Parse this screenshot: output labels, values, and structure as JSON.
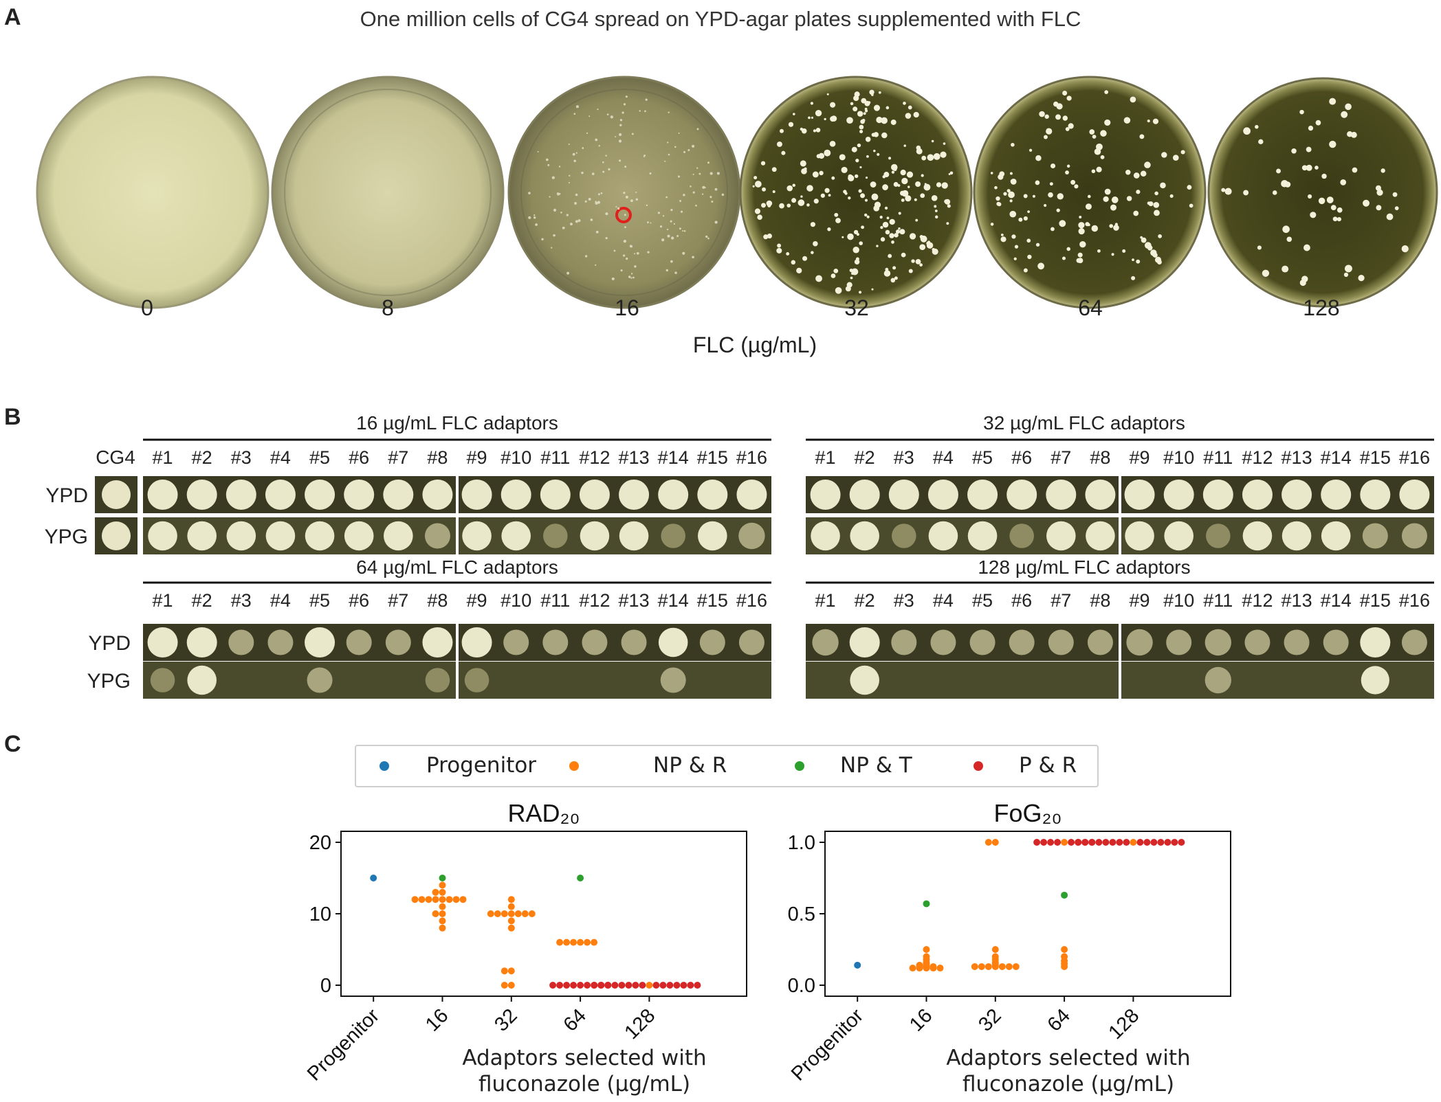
{
  "panel_a": {
    "letter": "A",
    "title": "One million cells of CG4 spread on YPD-agar plates supplemented with FLC",
    "doses": [
      "0",
      "8",
      "16",
      "32",
      "64",
      "128"
    ],
    "xlabel": "FLC (µg/mL)"
  },
  "panel_b": {
    "letter": "B",
    "groups": [
      {
        "title": "16 µg/mL FLC adaptors"
      },
      {
        "title": "32 µg/mL FLC adaptors"
      },
      {
        "title": "64 µg/mL FLC adaptors"
      },
      {
        "title": "128 µg/mL FLC adaptors"
      }
    ],
    "control_label": "CG4",
    "row_labels": [
      "YPD",
      "YPG"
    ],
    "isolates": [
      "#1",
      "#2",
      "#3",
      "#4",
      "#5",
      "#6",
      "#7",
      "#8",
      "#9",
      "#10",
      "#11",
      "#12",
      "#13",
      "#14",
      "#15",
      "#16"
    ]
  },
  "panel_c": {
    "letter": "C",
    "legend": [
      {
        "label": "Progenitor",
        "color": "#1f77b4"
      },
      {
        "label": "NP & R",
        "color": "#ff7f0e"
      },
      {
        "label": "NP & T",
        "color": "#2ca02c"
      },
      {
        "label": "P & R",
        "color": "#d62728"
      }
    ],
    "xlabel_line1": "Adaptors selected with",
    "xlabel_line2": "fluconazole (µg/mL)"
  },
  "chart_data": [
    {
      "type": "scatter",
      "title": "RAD₂₀",
      "categories": [
        "Progenitor",
        "16",
        "32",
        "64",
        "128"
      ],
      "ylim": [
        0,
        20
      ],
      "yticks": [
        0,
        10,
        20
      ],
      "series": [
        {
          "name": "Progenitor",
          "color": "#1f77b4",
          "points": [
            [
              "Progenitor",
              15
            ]
          ]
        },
        {
          "name": "NP & R",
          "color": "#ff7f0e",
          "points": [
            [
              "16",
              14
            ],
            [
              "16",
              13
            ],
            [
              "16",
              13
            ],
            [
              "16",
              12
            ],
            [
              "16",
              12
            ],
            [
              "16",
              12
            ],
            [
              "16",
              12
            ],
            [
              "16",
              12
            ],
            [
              "16",
              12
            ],
            [
              "16",
              12
            ],
            [
              "16",
              12
            ],
            [
              "16",
              11
            ],
            [
              "16",
              10
            ],
            [
              "16",
              10
            ],
            [
              "16",
              9
            ],
            [
              "16",
              8
            ],
            [
              "32",
              12
            ],
            [
              "32",
              11
            ],
            [
              "32",
              10
            ],
            [
              "32",
              10
            ],
            [
              "32",
              10
            ],
            [
              "32",
              10
            ],
            [
              "32",
              10
            ],
            [
              "32",
              10
            ],
            [
              "32",
              10
            ],
            [
              "32",
              9
            ],
            [
              "32",
              8
            ],
            [
              "32",
              2
            ],
            [
              "32",
              2
            ],
            [
              "32",
              0
            ],
            [
              "32",
              0
            ],
            [
              "64",
              6
            ],
            [
              "64",
              6
            ],
            [
              "64",
              6
            ],
            [
              "64",
              6
            ],
            [
              "64",
              6
            ],
            [
              "64",
              6
            ],
            [
              "128",
              0
            ]
          ]
        },
        {
          "name": "NP & T",
          "color": "#2ca02c",
          "points": [
            [
              "16",
              15
            ],
            [
              "64",
              15
            ]
          ]
        },
        {
          "name": "P & R",
          "color": "#d62728",
          "points": [
            [
              "64",
              0
            ],
            [
              "64",
              0
            ],
            [
              "64",
              0
            ],
            [
              "64",
              0
            ],
            [
              "64",
              0
            ],
            [
              "64",
              0
            ],
            [
              "64",
              0
            ],
            [
              "64",
              0
            ],
            [
              "64",
              0
            ],
            [
              "128",
              0
            ],
            [
              "128",
              0
            ],
            [
              "128",
              0
            ],
            [
              "128",
              0
            ],
            [
              "128",
              0
            ],
            [
              "128",
              0
            ],
            [
              "128",
              0
            ],
            [
              "128",
              0
            ],
            [
              "128",
              0
            ],
            [
              "128",
              0
            ],
            [
              "128",
              0
            ],
            [
              "128",
              0
            ],
            [
              "128",
              0
            ],
            [
              "128",
              0
            ],
            [
              "128",
              0
            ]
          ]
        }
      ]
    },
    {
      "type": "scatter",
      "title": "FoG₂₀",
      "categories": [
        "Progenitor",
        "16",
        "32",
        "64",
        "128"
      ],
      "ylim": [
        0,
        1.0
      ],
      "yticks": [
        0.0,
        0.5,
        1.0
      ],
      "series": [
        {
          "name": "Progenitor",
          "color": "#1f77b4",
          "points": [
            [
              "Progenitor",
              0.14
            ]
          ]
        },
        {
          "name": "NP & R",
          "color": "#ff7f0e",
          "points": [
            [
              "16",
              0.25
            ],
            [
              "16",
              0.2
            ],
            [
              "16",
              0.18
            ],
            [
              "16",
              0.16
            ],
            [
              "16",
              0.15
            ],
            [
              "16",
              0.14
            ],
            [
              "16",
              0.14
            ],
            [
              "16",
              0.13
            ],
            [
              "16",
              0.13
            ],
            [
              "16",
              0.13
            ],
            [
              "16",
              0.12
            ],
            [
              "16",
              0.12
            ],
            [
              "16",
              0.12
            ],
            [
              "16",
              0.12
            ],
            [
              "16",
              0.12
            ],
            [
              "32",
              1.0
            ],
            [
              "32",
              1.0
            ],
            [
              "32",
              0.25
            ],
            [
              "32",
              0.2
            ],
            [
              "32",
              0.18
            ],
            [
              "32",
              0.16
            ],
            [
              "32",
              0.15
            ],
            [
              "32",
              0.14
            ],
            [
              "32",
              0.13
            ],
            [
              "32",
              0.13
            ],
            [
              "32",
              0.13
            ],
            [
              "32",
              0.13
            ],
            [
              "32",
              0.13
            ],
            [
              "32",
              0.13
            ],
            [
              "32",
              0.13
            ],
            [
              "64",
              1.0
            ],
            [
              "64",
              0.25
            ],
            [
              "64",
              0.2
            ],
            [
              "64",
              0.17
            ],
            [
              "64",
              0.15
            ],
            [
              "64",
              0.13
            ],
            [
              "128",
              1.0
            ]
          ]
        },
        {
          "name": "NP & T",
          "color": "#2ca02c",
          "points": [
            [
              "16",
              0.57
            ],
            [
              "64",
              0.63
            ]
          ]
        },
        {
          "name": "P & R",
          "color": "#d62728",
          "points": [
            [
              "64",
              1.0
            ],
            [
              "64",
              1.0
            ],
            [
              "64",
              1.0
            ],
            [
              "64",
              1.0
            ],
            [
              "64",
              1.0
            ],
            [
              "64",
              1.0
            ],
            [
              "64",
              1.0
            ],
            [
              "64",
              1.0
            ],
            [
              "128",
              1.0
            ],
            [
              "128",
              1.0
            ],
            [
              "128",
              1.0
            ],
            [
              "128",
              1.0
            ],
            [
              "128",
              1.0
            ],
            [
              "128",
              1.0
            ],
            [
              "128",
              1.0
            ],
            [
              "128",
              1.0
            ],
            [
              "128",
              1.0
            ],
            [
              "128",
              1.0
            ],
            [
              "128",
              1.0
            ],
            [
              "128",
              1.0
            ],
            [
              "128",
              1.0
            ],
            [
              "128",
              1.0
            ],
            [
              "128",
              1.0
            ]
          ]
        }
      ]
    }
  ]
}
